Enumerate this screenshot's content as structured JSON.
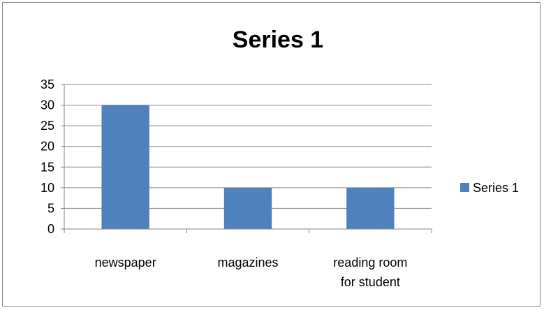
{
  "chart_data": {
    "type": "bar",
    "title": "Series 1",
    "categories": [
      "newspaper",
      "magazines",
      "reading room for student"
    ],
    "category_label_lines": [
      [
        "newspaper"
      ],
      [
        "magazines"
      ],
      [
        "reading room",
        "for student"
      ]
    ],
    "series": [
      {
        "name": "Series 1",
        "values": [
          30,
          10,
          10
        ],
        "color": "#4F81BD"
      }
    ],
    "ylim": [
      0,
      35
    ],
    "yticks": [
      0,
      5,
      10,
      15,
      20,
      25,
      30,
      35
    ],
    "grid": true,
    "legend_position": "right",
    "xlabel": "",
    "ylabel": ""
  }
}
